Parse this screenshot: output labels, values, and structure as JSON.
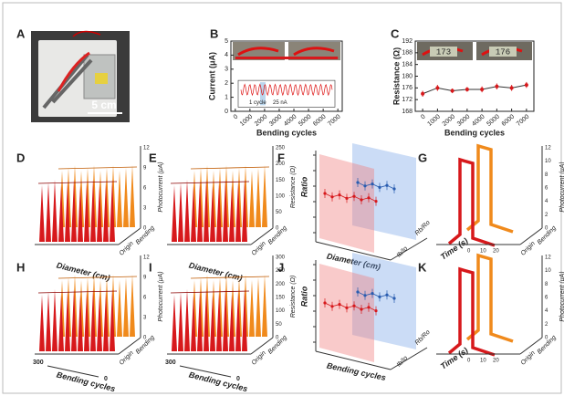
{
  "panel_a": {
    "label": "A",
    "scale_bar": "5 cm"
  },
  "chart_data": [
    {
      "type": "line",
      "panel": "B",
      "x_label": "Bending cycles",
      "y_label": "Current (μA)",
      "x": [
        0,
        500,
        1000,
        1500,
        2000,
        2500,
        3000,
        3500,
        4000,
        4500,
        5000,
        5500,
        6000,
        6500,
        7000
      ],
      "series": [
        {
          "color": "#d7191c",
          "values": [
            3.8,
            3.8,
            3.8,
            3.8,
            3.8,
            3.8,
            3.8,
            3.8,
            3.8,
            3.8,
            3.8,
            3.8,
            3.8,
            3.8,
            3.8
          ]
        }
      ],
      "xlim": [
        -300,
        7300
      ],
      "xticks": [
        0,
        1000,
        2000,
        3000,
        4000,
        5000,
        6000,
        7000
      ],
      "ylim": [
        0,
        5
      ],
      "yticks": [
        0,
        1,
        2,
        3,
        4,
        5
      ],
      "inset_labels": [
        "1 cycle",
        "25 nA"
      ]
    },
    {
      "type": "errorline",
      "panel": "C",
      "x_label": "Bending cycles",
      "y_label": "Resistance (Ω)",
      "x": [
        0,
        1000,
        2000,
        3000,
        4000,
        5000,
        6000,
        7000
      ],
      "series": [
        {
          "color": "#d7191c",
          "values": [
            174,
            176,
            175,
            175.5,
            175.5,
            176.5,
            176,
            177
          ],
          "errors": [
            1,
            1,
            0.8,
            0.8,
            1,
            1,
            1,
            1
          ]
        }
      ],
      "xlim": [
        -500,
        7500
      ],
      "xticks": [
        0,
        1000,
        2000,
        3000,
        4000,
        5000,
        6000,
        7000
      ],
      "ylim": [
        168,
        192
      ],
      "yticks": [
        168,
        172,
        176,
        180,
        184,
        188,
        192
      ],
      "meter_readings": [
        "173",
        "176"
      ]
    }
  ],
  "figures": [
    {
      "panel": "D",
      "type": "waterfall",
      "x_label": "Diameter (cm)",
      "z_label": "Photocurrent (μA)",
      "zticks": [
        0,
        3,
        6,
        9,
        12
      ],
      "origin": "Origin",
      "bending": "Bending"
    },
    {
      "panel": "E",
      "type": "waterfall",
      "x_label": "Diameter (cm)",
      "z_label": "Resistance (Ω)",
      "zticks": [
        0,
        50,
        100,
        150,
        200,
        250
      ],
      "origin": "Origin",
      "bending": "Bending"
    },
    {
      "panel": "F",
      "type": "planes",
      "x_label": "Diameter (cm)",
      "y_label": "Ratio",
      "front_label": "Ib/Io",
      "back_label": "Rb/Ro"
    },
    {
      "panel": "G",
      "type": "steps",
      "x_label": "Time (s)",
      "z_label": "Photocurrent (μA)",
      "zticks": [
        0,
        2,
        4,
        6,
        8,
        10,
        12
      ],
      "xticks": [
        0,
        10,
        20
      ],
      "origin": "Origin",
      "bending": "Bending"
    },
    {
      "panel": "H",
      "type": "waterfall",
      "x_label": "Bending cycles",
      "x_start": "300",
      "x_end": "0",
      "z_label": "Photocurrent (μA)",
      "zticks": [
        0,
        3,
        6,
        9,
        12
      ],
      "origin": "Origin",
      "bending": "Bending"
    },
    {
      "panel": "I",
      "type": "waterfall",
      "x_label": "Bending cycles",
      "x_start": "300",
      "x_end": "0",
      "z_label": "Resistance (Ω)",
      "zticks": [
        0,
        50,
        100,
        150,
        200,
        250,
        300
      ],
      "origin": "Origin",
      "bending": "Bending"
    },
    {
      "panel": "J",
      "type": "planes",
      "x_label": "Bending cycles",
      "y_label": "Ratio",
      "front_label": "Ib/Io",
      "back_label": "Rb/Ro"
    },
    {
      "panel": "K",
      "type": "steps",
      "x_label": "Time (s)",
      "z_label": "Photocurrent (μA)",
      "zticks": [
        0,
        2,
        4,
        6,
        8,
        10,
        12
      ],
      "xticks": [
        0,
        10,
        20
      ],
      "origin": "Origin",
      "bending": "Bending"
    }
  ]
}
